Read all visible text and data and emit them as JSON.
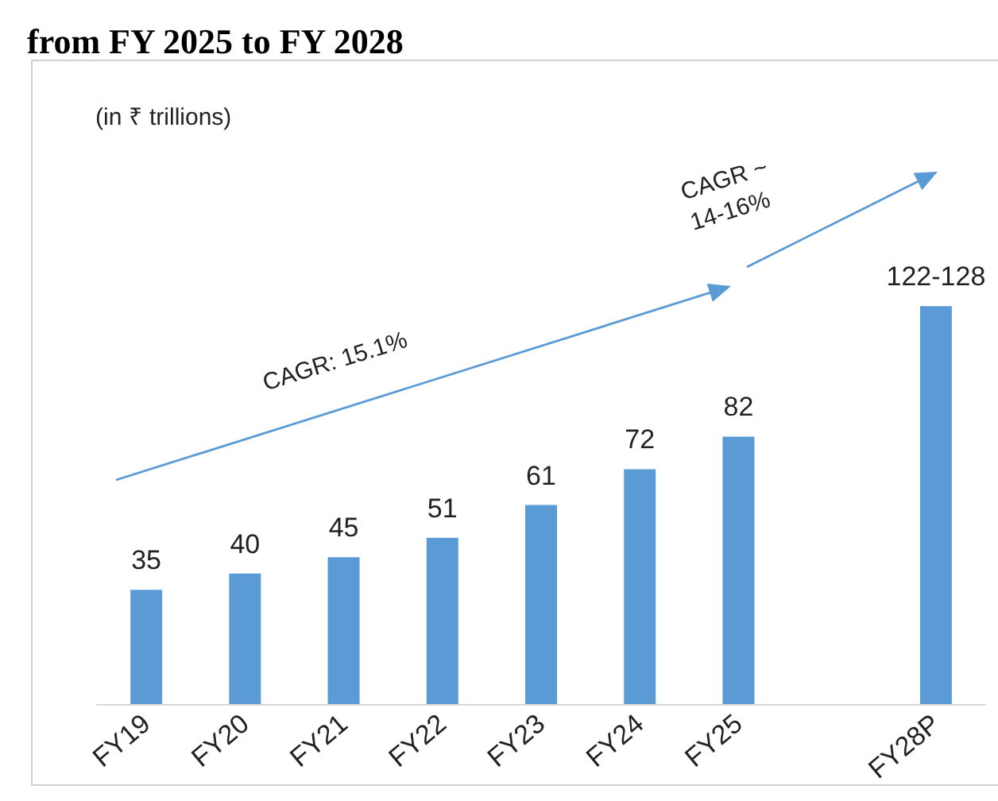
{
  "chart_data": {
    "type": "bar",
    "title": "from FY 2025 to FY 2028",
    "categories": [
      "FY19",
      "FY20",
      "FY21",
      "FY22",
      "FY23",
      "FY24",
      "FY25",
      null,
      "FY28P"
    ],
    "values": [
      35,
      40,
      45,
      51,
      61,
      72,
      82,
      null,
      122
    ],
    "value_labels": [
      "35",
      "40",
      "45",
      "51",
      "61",
      "72",
      "82",
      null,
      "122-128"
    ],
    "color": "#5b9bd5",
    "annotations": [
      "(in ₹ trillions)",
      "CAGR: 15.1%",
      "CAGR ~ 14-16%"
    ]
  }
}
